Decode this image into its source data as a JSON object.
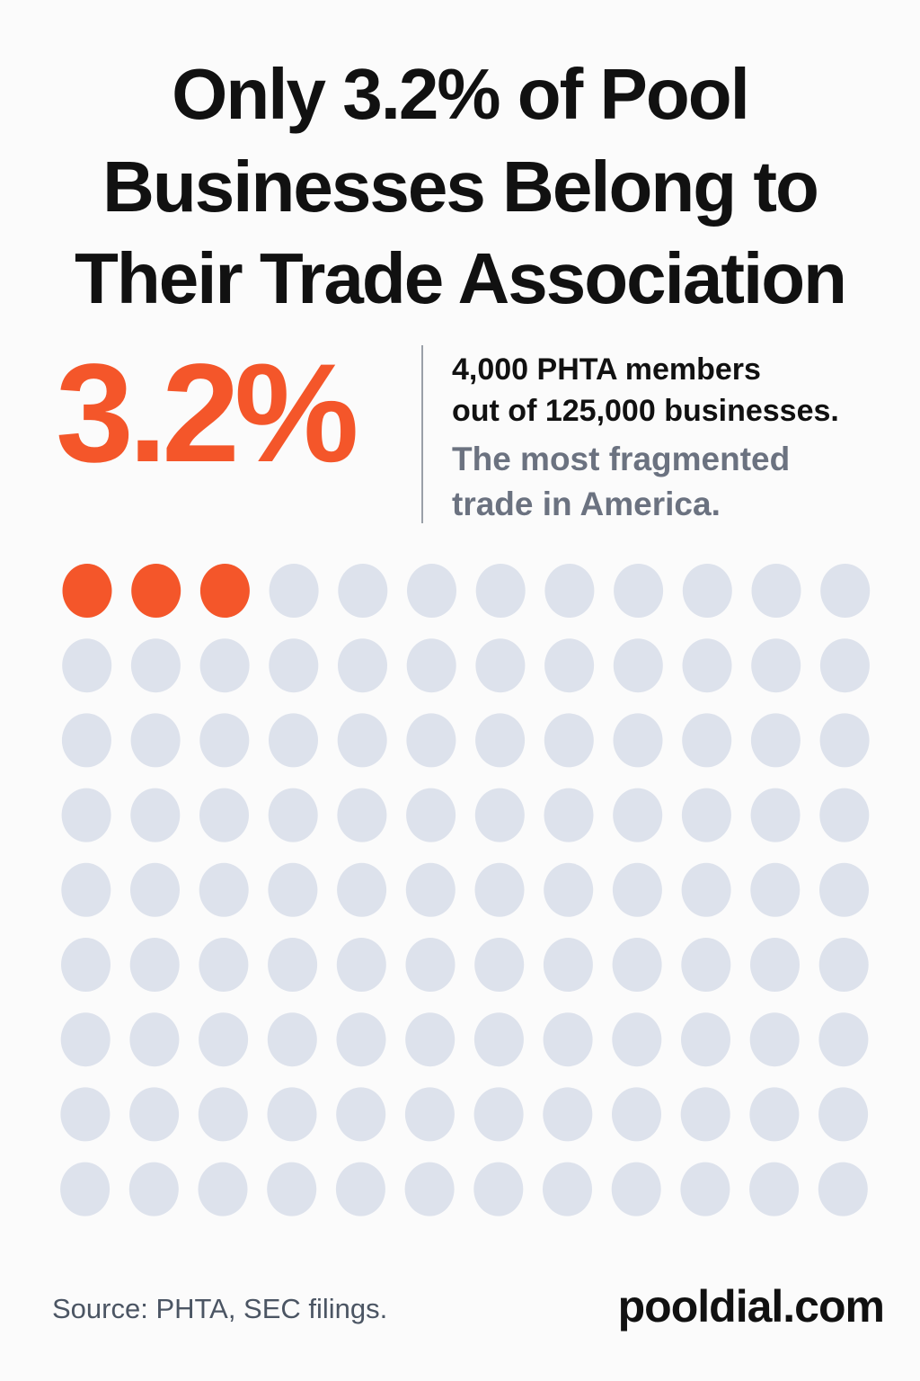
{
  "chart_data": {
    "type": "waffle",
    "title_lines": [
      "Only 3.2% of Pool",
      "Businesses Belong to",
      "Their Trade Association"
    ],
    "stat": "3.2%",
    "detail_lines": [
      "4,000 PHTA members",
      "out of 125,000 businesses."
    ],
    "note_lines": [
      "The most fragmented",
      "trade in America."
    ],
    "values": [
      3,
      105
    ],
    "colors": [
      "#f4562a",
      "#dde2ec"
    ],
    "columns": 12,
    "source": "Source: PHTA, SEC filings.",
    "brand": "pooldial.com"
  }
}
